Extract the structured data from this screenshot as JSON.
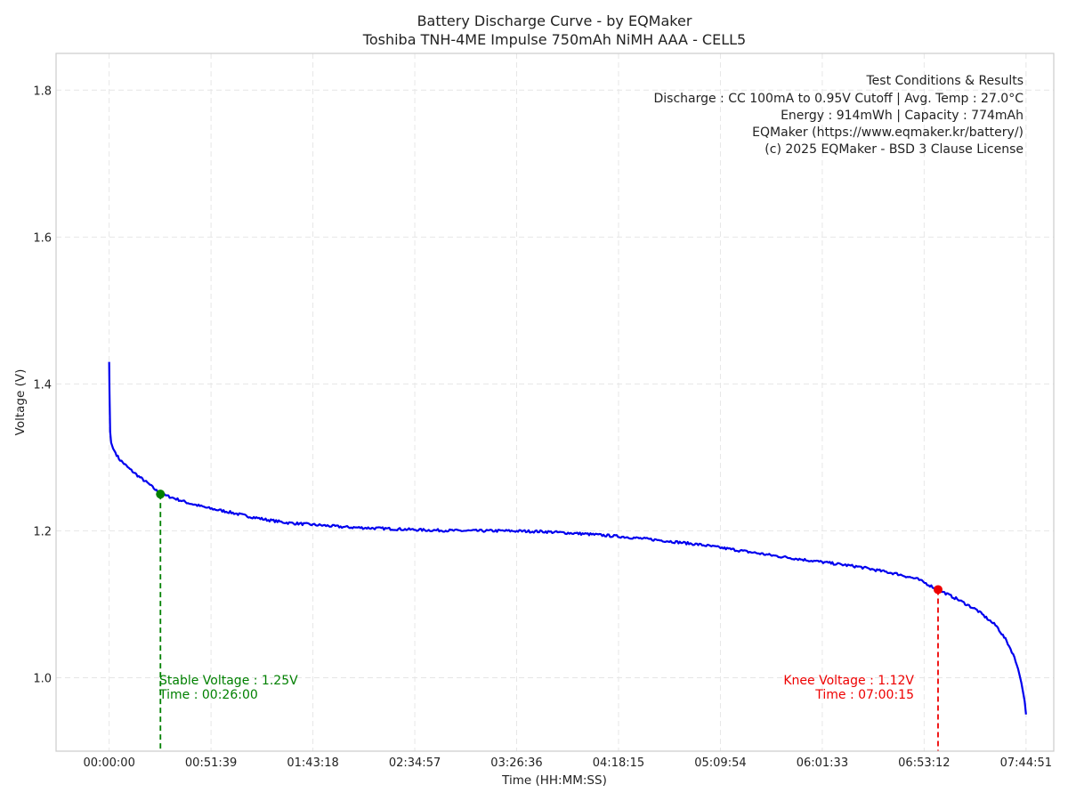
{
  "chart_data": {
    "type": "line",
    "title": "Battery Discharge Curve - by EQMaker",
    "subtitle": "Toshiba TNH-4ME Impulse 750mAh NiMH AAA - CELL5",
    "xlabel": "Time (HH:MM:SS)",
    "ylabel": "Voltage (V)",
    "xlim_seconds": [
      -1615,
      28735
    ],
    "ylim": [
      0.9,
      1.85
    ],
    "grid": true,
    "x_tick_values_seconds": [
      0,
      3099,
      6198,
      9297,
      12396,
      15495,
      18594,
      21693,
      24792,
      27891
    ],
    "x_tick_labels": [
      "00:00:00",
      "00:51:39",
      "01:43:18",
      "02:34:57",
      "03:26:36",
      "04:18:15",
      "05:09:54",
      "06:01:33",
      "06:53:12",
      "07:44:51"
    ],
    "y_tick_values": [
      1.0,
      1.2,
      1.4,
      1.6,
      1.8
    ],
    "y_tick_labels": [
      "1.0",
      "1.2",
      "1.4",
      "1.6",
      "1.8"
    ],
    "series": [
      {
        "name": "Voltage",
        "color": "#0000ee",
        "x_seconds": [
          0,
          10,
          30,
          60,
          120,
          300,
          600,
          900,
          1200,
          1560,
          1800,
          2400,
          3000,
          3600,
          4200,
          4800,
          5400,
          6000,
          6600,
          7200,
          8400,
          9600,
          10800,
          12000,
          13200,
          14400,
          15600,
          16800,
          18000,
          19200,
          20400,
          21600,
          22800,
          24000,
          24600,
          25215,
          25800,
          26400,
          27000,
          27300,
          27500,
          27650,
          27750,
          27850,
          27891
        ],
        "values": [
          1.43,
          1.39,
          1.335,
          1.32,
          1.312,
          1.298,
          1.285,
          1.274,
          1.264,
          1.25,
          1.247,
          1.238,
          1.231,
          1.226,
          1.22,
          1.215,
          1.211,
          1.209,
          1.207,
          1.205,
          1.203,
          1.201,
          1.2,
          1.2,
          1.199,
          1.196,
          1.192,
          1.187,
          1.181,
          1.173,
          1.165,
          1.158,
          1.151,
          1.141,
          1.134,
          1.12,
          1.107,
          1.092,
          1.07,
          1.05,
          1.032,
          1.012,
          0.993,
          0.968,
          0.95
        ]
      }
    ],
    "annotations": [
      {
        "name": "stable",
        "x_seconds": 1560,
        "y": 1.25,
        "color": "#008000",
        "line1": "Stable Voltage : 1.25V",
        "line2": "Time : 00:26:00",
        "align": "left"
      },
      {
        "name": "knee",
        "x_seconds": 25215,
        "y": 1.12,
        "color": "#ee0000",
        "line1": "Knee Voltage : 1.12V",
        "line2": "Time : 07:00:15",
        "align": "right"
      }
    ],
    "info_box": {
      "location": "top-right",
      "lines": [
        "Test Conditions & Results",
        "Discharge : CC 100mA to 0.95V Cutoff | Avg. Temp : 27.0°C",
        "Energy : 914mWh | Capacity : 774mAh",
        "EQMaker (https://www.eqmaker.kr/battery/)",
        "(c) 2025 EQMaker - BSD 3 Clause License"
      ]
    }
  }
}
